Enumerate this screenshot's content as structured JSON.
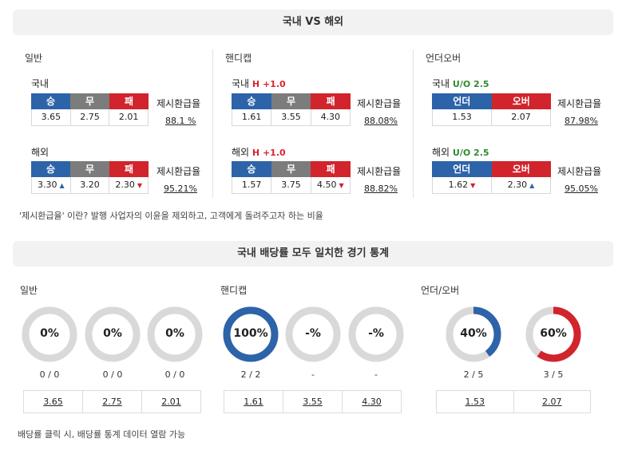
{
  "top_banner": "국내 VS 해외",
  "sections": {
    "general": "일반",
    "handicap": "핸디캡",
    "overunder": "언더오버"
  },
  "refund_label": "제시환급율",
  "general": {
    "domestic": {
      "label": "국내",
      "headers": [
        "승",
        "무",
        "패"
      ],
      "values": [
        "3.65",
        "2.75",
        "2.01"
      ],
      "refund": "88.1 %"
    },
    "overseas": {
      "label": "해외",
      "headers": [
        "승",
        "무",
        "패"
      ],
      "values": [
        "3.30",
        "3.20",
        "2.30"
      ],
      "refund": "95.21%"
    }
  },
  "handicap": {
    "domestic": {
      "label": "국내",
      "line": "H +1.0",
      "headers": [
        "승",
        "무",
        "패"
      ],
      "values": [
        "1.61",
        "3.55",
        "4.30"
      ],
      "refund": "88.08%"
    },
    "overseas": {
      "label": "해외",
      "line": "H +1.0",
      "headers": [
        "승",
        "무",
        "패"
      ],
      "values": [
        "1.57",
        "3.75",
        "4.50"
      ],
      "refund": "88.82%"
    }
  },
  "overunder": {
    "domestic": {
      "label": "국내",
      "line": "U/O 2.5",
      "headers": [
        "언더",
        "오버"
      ],
      "values": [
        "1.53",
        "2.07"
      ],
      "refund": "87.98%"
    },
    "overseas": {
      "label": "해외",
      "line": "U/O 2.5",
      "headers": [
        "언더",
        "오버"
      ],
      "values": [
        "1.62",
        "2.30"
      ],
      "refund": "95.05%"
    }
  },
  "refund_note": "'제시환급율' 이란? 발행 사업자의 이윤을 제외하고, 고객에게 돌려주고자 하는 비율",
  "bottom_banner": "국내 배당률 모두 일치한 경기 통계",
  "stats": {
    "general_title": "일반",
    "handicap_title": "핸디캡",
    "overunder_title": "언더/오버",
    "general": [
      {
        "pct": "0%",
        "fraction": 0,
        "count": "0 / 0",
        "odds": "3.65"
      },
      {
        "pct": "0%",
        "fraction": 0,
        "count": "0 / 0",
        "odds": "2.75"
      },
      {
        "pct": "0%",
        "fraction": 0,
        "count": "0 / 0",
        "odds": "2.01"
      }
    ],
    "handicap": [
      {
        "pct": "100%",
        "fraction": 1,
        "count": "2 / 2",
        "odds": "1.61"
      },
      {
        "pct": "-%",
        "fraction": 0,
        "count": "-",
        "odds": "3.55"
      },
      {
        "pct": "-%",
        "fraction": 0,
        "count": "-",
        "odds": "4.30"
      }
    ],
    "overunder": [
      {
        "pct": "40%",
        "fraction": 0.4,
        "count": "2 / 5",
        "odds": "1.53"
      },
      {
        "pct": "60%",
        "fraction": 0.6,
        "count": "3 / 5",
        "odds": "2.07"
      }
    ]
  },
  "footer_note": "배당률 클릭 시, 배당률 통계 데이터 열람 가능",
  "colors": {
    "blue": "#2d63a8",
    "gray": "#7c7c7c",
    "red": "#d1242c",
    "ring_empty": "#d9d9d9"
  }
}
